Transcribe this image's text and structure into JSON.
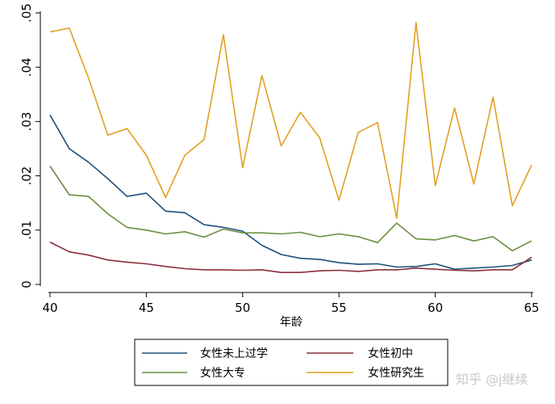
{
  "chart_data": {
    "type": "line",
    "title": "",
    "xlabel": "年龄",
    "ylabel": "",
    "xlim": [
      40,
      65
    ],
    "ylim": [
      0,
      0.05
    ],
    "xticks": [
      {
        "value": 40,
        "label": "40"
      },
      {
        "value": 45,
        "label": "45"
      },
      {
        "value": 50,
        "label": "50"
      },
      {
        "value": 55,
        "label": "55"
      },
      {
        "value": 60,
        "label": "60"
      },
      {
        "value": 65,
        "label": "65"
      }
    ],
    "yticks": [
      {
        "value": 0,
        "label": "0"
      },
      {
        "value": 0.01,
        "label": ".01"
      },
      {
        "value": 0.02,
        "label": ".02"
      },
      {
        "value": 0.03,
        "label": ".03"
      },
      {
        "value": 0.04,
        "label": ".04"
      },
      {
        "value": 0.05,
        "label": ".05"
      }
    ],
    "grid": false,
    "legend_position": "bottom",
    "x": [
      40,
      41,
      42,
      43,
      44,
      45,
      46,
      47,
      48,
      49,
      50,
      51,
      52,
      53,
      54,
      55,
      56,
      57,
      58,
      59,
      60,
      61,
      62,
      63,
      64,
      65
    ],
    "series": [
      {
        "name": "女性未上过学",
        "color": "#1f4e79",
        "values": [
          0.0312,
          0.025,
          0.0225,
          0.0195,
          0.0162,
          0.0168,
          0.0135,
          0.0132,
          0.011,
          0.0105,
          0.0098,
          0.0072,
          0.0055,
          0.0048,
          0.0046,
          0.004,
          0.0037,
          0.0038,
          0.0032,
          0.0033,
          0.0038,
          0.0028,
          0.003,
          0.0032,
          0.0035,
          0.0045
        ]
      },
      {
        "name": "女性初中",
        "color": "#8b2e3c",
        "values": [
          0.0078,
          0.006,
          0.0054,
          0.0045,
          0.0041,
          0.0038,
          0.0033,
          0.0029,
          0.0027,
          0.0027,
          0.0026,
          0.0027,
          0.0022,
          0.0022,
          0.0025,
          0.0026,
          0.0024,
          0.0027,
          0.0027,
          0.003,
          0.0028,
          0.0026,
          0.0025,
          0.0027,
          0.0027,
          0.005
        ]
      },
      {
        "name": "女性大专",
        "color": "#6a8f3e",
        "values": [
          0.0218,
          0.0165,
          0.0162,
          0.013,
          0.0105,
          0.01,
          0.0093,
          0.0097,
          0.0087,
          0.0102,
          0.0095,
          0.0095,
          0.0093,
          0.0096,
          0.0088,
          0.0093,
          0.0088,
          0.0077,
          0.0113,
          0.0084,
          0.0082,
          0.009,
          0.008,
          0.0088,
          0.0062,
          0.008
        ]
      },
      {
        "name": "女性研究生",
        "color": "#e0a020",
        "values": [
          0.0465,
          0.0472,
          0.038,
          0.0275,
          0.0287,
          0.0238,
          0.016,
          0.0238,
          0.0267,
          0.046,
          0.0215,
          0.0385,
          0.0255,
          0.0317,
          0.027,
          0.0155,
          0.028,
          0.0298,
          0.0122,
          0.0482,
          0.0182,
          0.0325,
          0.0185,
          0.0345,
          0.0145,
          0.022
        ]
      }
    ]
  },
  "legend": {
    "items": [
      "女性未上过学",
      "女性初中",
      "女性大专",
      "女性研究生"
    ]
  },
  "watermark": {
    "text": "知乎 @j继续"
  }
}
